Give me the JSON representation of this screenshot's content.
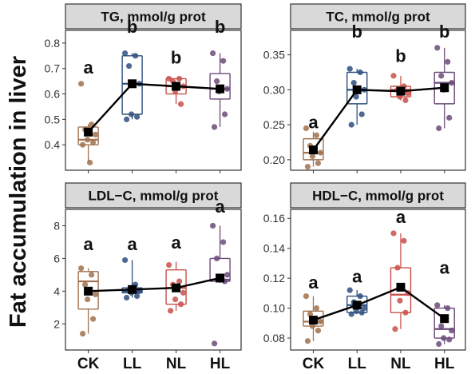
{
  "figure": {
    "ylabel": "Fat accumulation in liver"
  },
  "chart_data": [
    {
      "type": "box",
      "title": "TG, mmol/g prot",
      "categories": [
        "CK",
        "LL",
        "NL",
        "HL"
      ],
      "colors": [
        "#a07250",
        "#2e4f7e",
        "#c9504a",
        "#6a4a78"
      ],
      "ylim": [
        0.3,
        0.85
      ],
      "yticks": [
        0.4,
        0.5,
        0.6,
        0.7,
        0.8
      ],
      "ytick_labels": [
        "0.4",
        "0.5",
        "0.6",
        "0.7",
        "0.8"
      ],
      "boxes": [
        {
          "min": 0.33,
          "q1": 0.4,
          "median": 0.42,
          "q3": 0.47,
          "max": 0.48
        },
        {
          "min": 0.5,
          "q1": 0.52,
          "median": 0.64,
          "q3": 0.75,
          "max": 0.76
        },
        {
          "min": 0.56,
          "q1": 0.6,
          "median": 0.63,
          "q3": 0.66,
          "max": 0.66
        },
        {
          "min": 0.47,
          "q1": 0.58,
          "median": 0.62,
          "q3": 0.68,
          "max": 0.76
        }
      ],
      "points": [
        [
          0.64,
          0.48,
          0.46,
          0.44,
          0.42,
          0.41,
          0.4,
          0.33
        ],
        [
          0.76,
          0.75,
          0.71,
          0.64,
          0.52,
          0.51,
          0.5
        ],
        [
          0.66,
          0.66,
          0.65,
          0.63,
          0.61,
          0.56
        ],
        [
          0.76,
          0.73,
          0.65,
          0.62,
          0.61,
          0.52,
          0.47
        ]
      ],
      "means": [
        0.45,
        0.64,
        0.63,
        0.62
      ],
      "letters": [
        "a",
        "b",
        "b",
        "b"
      ],
      "letter_y": [
        0.68,
        0.84,
        0.72,
        0.84
      ]
    },
    {
      "type": "box",
      "title": "TC, mmol/g prot",
      "categories": [
        "CK",
        "LL",
        "NL",
        "HL"
      ],
      "colors": [
        "#a07250",
        "#2e4f7e",
        "#c9504a",
        "#6a4a78"
      ],
      "ylim": [
        0.185,
        0.385
      ],
      "yticks": [
        0.2,
        0.25,
        0.3,
        0.35
      ],
      "ytick_labels": [
        "0.20",
        "0.25",
        "0.30",
        "0.35"
      ],
      "boxes": [
        {
          "min": 0.19,
          "q1": 0.2,
          "median": 0.21,
          "q3": 0.23,
          "max": 0.24
        },
        {
          "min": 0.25,
          "q1": 0.28,
          "median": 0.3,
          "q3": 0.325,
          "max": 0.33
        },
        {
          "min": 0.285,
          "q1": 0.29,
          "median": 0.3,
          "q3": 0.305,
          "max": 0.32
        },
        {
          "min": 0.245,
          "q1": 0.28,
          "median": 0.31,
          "q3": 0.325,
          "max": 0.36
        }
      ],
      "points": [
        [
          0.245,
          0.235,
          0.22,
          0.21,
          0.205,
          0.195,
          0.19
        ],
        [
          0.33,
          0.325,
          0.31,
          0.3,
          0.29,
          0.265,
          0.25
        ],
        [
          0.32,
          0.305,
          0.3,
          0.295,
          0.29,
          0.285
        ],
        [
          0.36,
          0.34,
          0.32,
          0.31,
          0.3,
          0.26,
          0.245
        ]
      ],
      "means": [
        0.214,
        0.3,
        0.298,
        0.303
      ],
      "letters": [
        "a",
        "b",
        "b",
        "b"
      ],
      "letter_y": [
        0.245,
        0.375,
        0.34,
        0.375
      ]
    },
    {
      "type": "box",
      "title": "LDL−C, mmol/g prot",
      "categories": [
        "CK",
        "LL",
        "NL",
        "HL"
      ],
      "colors": [
        "#a07250",
        "#2e4f7e",
        "#c9504a",
        "#6a4a78"
      ],
      "ylim": [
        0.4,
        9.0
      ],
      "yticks": [
        2,
        4,
        6,
        8
      ],
      "ytick_labels": [
        "2",
        "4",
        "6",
        "8"
      ],
      "boxes": [
        {
          "min": 1.4,
          "q1": 2.9,
          "median": 4.6,
          "q3": 5.2,
          "max": 5.4
        },
        {
          "min": 3.6,
          "q1": 3.9,
          "median": 4.0,
          "q3": 4.2,
          "max": 5.9
        },
        {
          "min": 2.8,
          "q1": 3.2,
          "median": 4.2,
          "q3": 5.3,
          "max": 5.8
        },
        {
          "min": 4.5,
          "q1": 4.6,
          "median": 4.7,
          "q3": 6.0,
          "max": 8.0
        }
      ],
      "points": [
        [
          5.4,
          5.0,
          4.4,
          3.8,
          3.5,
          2.3,
          1.4
        ],
        [
          5.9,
          4.4,
          4.1,
          4.0,
          3.9,
          3.7,
          3.6
        ],
        [
          5.6,
          4.6,
          4.4,
          3.9,
          3.5,
          3.2,
          2.8
        ],
        [
          8.0,
          7.0,
          6.0,
          5.0,
          4.8,
          4.6,
          0.8
        ]
      ],
      "means": [
        4.0,
        4.1,
        4.2,
        4.8
      ],
      "letters": [
        "a",
        "a",
        "a",
        "a"
      ],
      "letter_y": [
        6.5,
        6.5,
        6.6,
        8.8
      ]
    },
    {
      "type": "box",
      "title": "HDL−C, mmol/g prot",
      "categories": [
        "CK",
        "LL",
        "NL",
        "HL"
      ],
      "colors": [
        "#a07250",
        "#2e4f7e",
        "#c9504a",
        "#6a4a78"
      ],
      "ylim": [
        0.072,
        0.166
      ],
      "yticks": [
        0.08,
        0.1,
        0.12,
        0.14,
        0.16
      ],
      "ytick_labels": [
        "0.08",
        "0.10",
        "0.12",
        "0.14",
        "0.16"
      ],
      "boxes": [
        {
          "min": 0.078,
          "q1": 0.088,
          "median": 0.091,
          "q3": 0.098,
          "max": 0.108
        },
        {
          "min": 0.096,
          "q1": 0.097,
          "median": 0.102,
          "q3": 0.108,
          "max": 0.112
        },
        {
          "min": 0.086,
          "q1": 0.097,
          "median": 0.109,
          "q3": 0.127,
          "max": 0.15
        },
        {
          "min": 0.076,
          "q1": 0.08,
          "median": 0.086,
          "q3": 0.1,
          "max": 0.102
        }
      ],
      "points": [
        [
          0.108,
          0.1,
          0.096,
          0.091,
          0.088,
          0.085,
          0.078
        ],
        [
          0.112,
          0.108,
          0.104,
          0.1,
          0.098,
          0.097,
          0.096
        ],
        [
          0.15,
          0.145,
          0.127,
          0.11,
          0.105,
          0.097,
          0.086
        ],
        [
          0.102,
          0.1,
          0.088,
          0.085,
          0.08,
          0.079,
          0.076
        ]
      ],
      "means": [
        0.092,
        0.102,
        0.114,
        0.093
      ],
      "letters": [
        "a",
        "a",
        "a",
        "a"
      ],
      "letter_y": [
        0.113,
        0.117,
        0.157,
        0.123
      ]
    }
  ]
}
